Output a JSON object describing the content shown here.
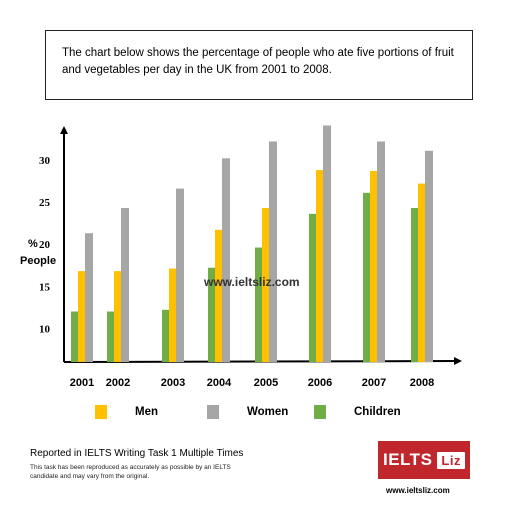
{
  "prompt": {
    "line1": "The chart below shows the percentage of people who ate five portions of fruit",
    "line2": "and vegetables per day in the UK from 2001 to 2008."
  },
  "chart_data": {
    "type": "bar",
    "categories": [
      "2001",
      "2002",
      "2003",
      "2004",
      "2005",
      "2006",
      "2007",
      "2008"
    ],
    "series": [
      {
        "name": "Children",
        "color": "#70ad47",
        "values": [
          12,
          12,
          12.2,
          17.2,
          19.6,
          23.6,
          26.1,
          24.3
        ]
      },
      {
        "name": "Men",
        "color": "#ffc000",
        "values": [
          16.8,
          16.8,
          17.1,
          21.7,
          24.3,
          28.8,
          28.7,
          27.2
        ]
      },
      {
        "name": "Women",
        "color": "#a6a6a6",
        "values": [
          21.3,
          24.3,
          26.6,
          30.2,
          32.2,
          34.1,
          32.2,
          31.1
        ]
      }
    ],
    "yticks": [
      10,
      15,
      20,
      25,
      30
    ],
    "ylim": [
      6,
      35
    ],
    "ylabel_symbol": "%",
    "ylabel": "People",
    "grid": false,
    "legend_position": "bottom"
  },
  "watermark": "www.ieltsliz.com",
  "legend": {
    "men": "Men",
    "women": "Women",
    "children": "Children"
  },
  "footer": {
    "title": "Reported in IELTS Writing Task 1 Multiple Times",
    "note": "This task has been reproduced as accurately as possible by an IELTS candidate and may vary from the original."
  },
  "logo": {
    "part1": "IELTS",
    "part2": "Liz"
  },
  "website": "www.ieltsliz.com",
  "colors": {
    "men": "#ffc000",
    "women": "#a6a6a6",
    "children": "#70ad47",
    "brand": "#c0272d"
  }
}
